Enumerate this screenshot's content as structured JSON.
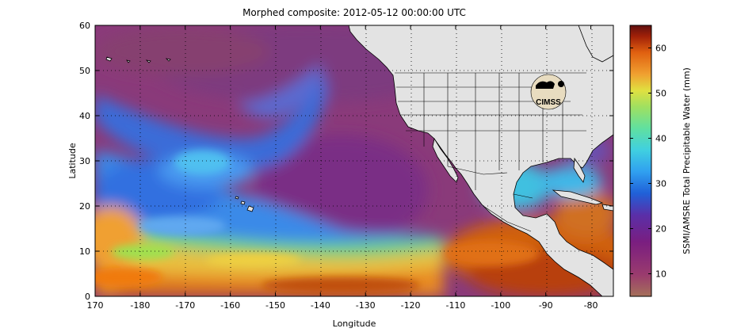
{
  "title": "Morphed composite: 2012-05-12 00:00:00 UTC",
  "x_axis": {
    "label": "Longitude",
    "range": [
      170,
      285
    ],
    "ticks": [
      {
        "value": 170,
        "label": "170"
      },
      {
        "value": 180,
        "label": "-180"
      },
      {
        "value": 190,
        "label": "-170"
      },
      {
        "value": 200,
        "label": "-160"
      },
      {
        "value": 210,
        "label": "-150"
      },
      {
        "value": 220,
        "label": "-140"
      },
      {
        "value": 230,
        "label": "-130"
      },
      {
        "value": 240,
        "label": "-120"
      },
      {
        "value": 250,
        "label": "-110"
      },
      {
        "value": 260,
        "label": "-100"
      },
      {
        "value": 270,
        "label": "-90"
      },
      {
        "value": 280,
        "label": "-80"
      }
    ]
  },
  "y_axis": {
    "label": "Latitude",
    "range": [
      0,
      60
    ],
    "ticks": [
      {
        "value": 0,
        "label": "0"
      },
      {
        "value": 10,
        "label": "10"
      },
      {
        "value": 20,
        "label": "20"
      },
      {
        "value": 30,
        "label": "30"
      },
      {
        "value": 40,
        "label": "40"
      },
      {
        "value": 50,
        "label": "50"
      },
      {
        "value": 60,
        "label": "60"
      }
    ]
  },
  "grid": "dotted",
  "colorbar": {
    "label": "SSMI/AMSRE Total Precipitable Water (mm)",
    "range": [
      5,
      65
    ],
    "ticks": [
      {
        "value": 10,
        "label": "10"
      },
      {
        "value": 20,
        "label": "20"
      },
      {
        "value": 30,
        "label": "30"
      },
      {
        "value": 40,
        "label": "40"
      },
      {
        "value": 50,
        "label": "50"
      },
      {
        "value": 60,
        "label": "60"
      }
    ],
    "colors": [
      "#a5705a",
      "#9a3b6e",
      "#7a1e80",
      "#5a2fa8",
      "#2060d8",
      "#30a0f0",
      "#40d0e0",
      "#60e0a0",
      "#a0e060",
      "#e0e040",
      "#f0a030",
      "#e06010",
      "#a02008",
      "#601010"
    ]
  },
  "logo_text": "CIMSS",
  "colors": {
    "land": "#e3e3e3",
    "land_edge": "#000000",
    "low_moisture": "#8a3a7a",
    "high_moisture": "#d06010"
  }
}
